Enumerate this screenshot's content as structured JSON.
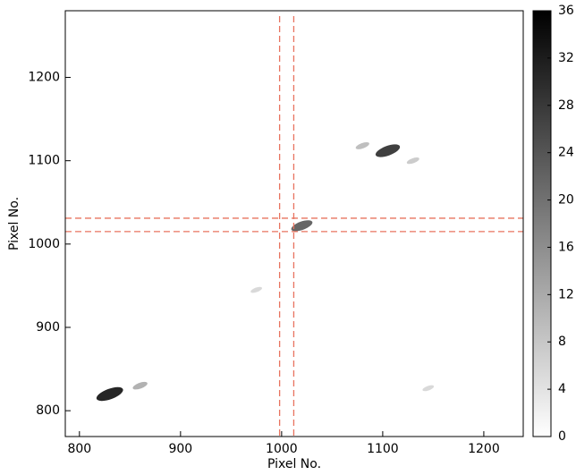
{
  "chart_data": {
    "type": "heatmap",
    "xlabel": "Pixel No.",
    "ylabel": "Pixel No.",
    "xlim": [
      786,
      1239
    ],
    "ylim": [
      769,
      1280
    ],
    "xticks": [
      800,
      900,
      1000,
      1100,
      1200
    ],
    "yticks": [
      800,
      900,
      1000,
      1100,
      1200
    ],
    "spots": {
      "x": [
        830,
        1105,
        1020,
        860,
        1080,
        1130,
        975,
        1145
      ],
      "y": [
        820,
        1112,
        1022,
        830,
        1118,
        1100,
        945,
        827
      ],
      "values": [
        34,
        30,
        24,
        12,
        10,
        8,
        6,
        6
      ]
    },
    "guide_lines": {
      "color": "#e8735f",
      "x": [
        998,
        1012
      ],
      "y": [
        1031,
        1015
      ]
    },
    "colorbar": {
      "lim": [
        0,
        36
      ],
      "ticks": [
        0,
        4,
        8,
        12,
        16,
        20,
        24,
        28,
        32,
        36
      ],
      "colors": [
        "#ffffff",
        "#000000"
      ]
    }
  }
}
